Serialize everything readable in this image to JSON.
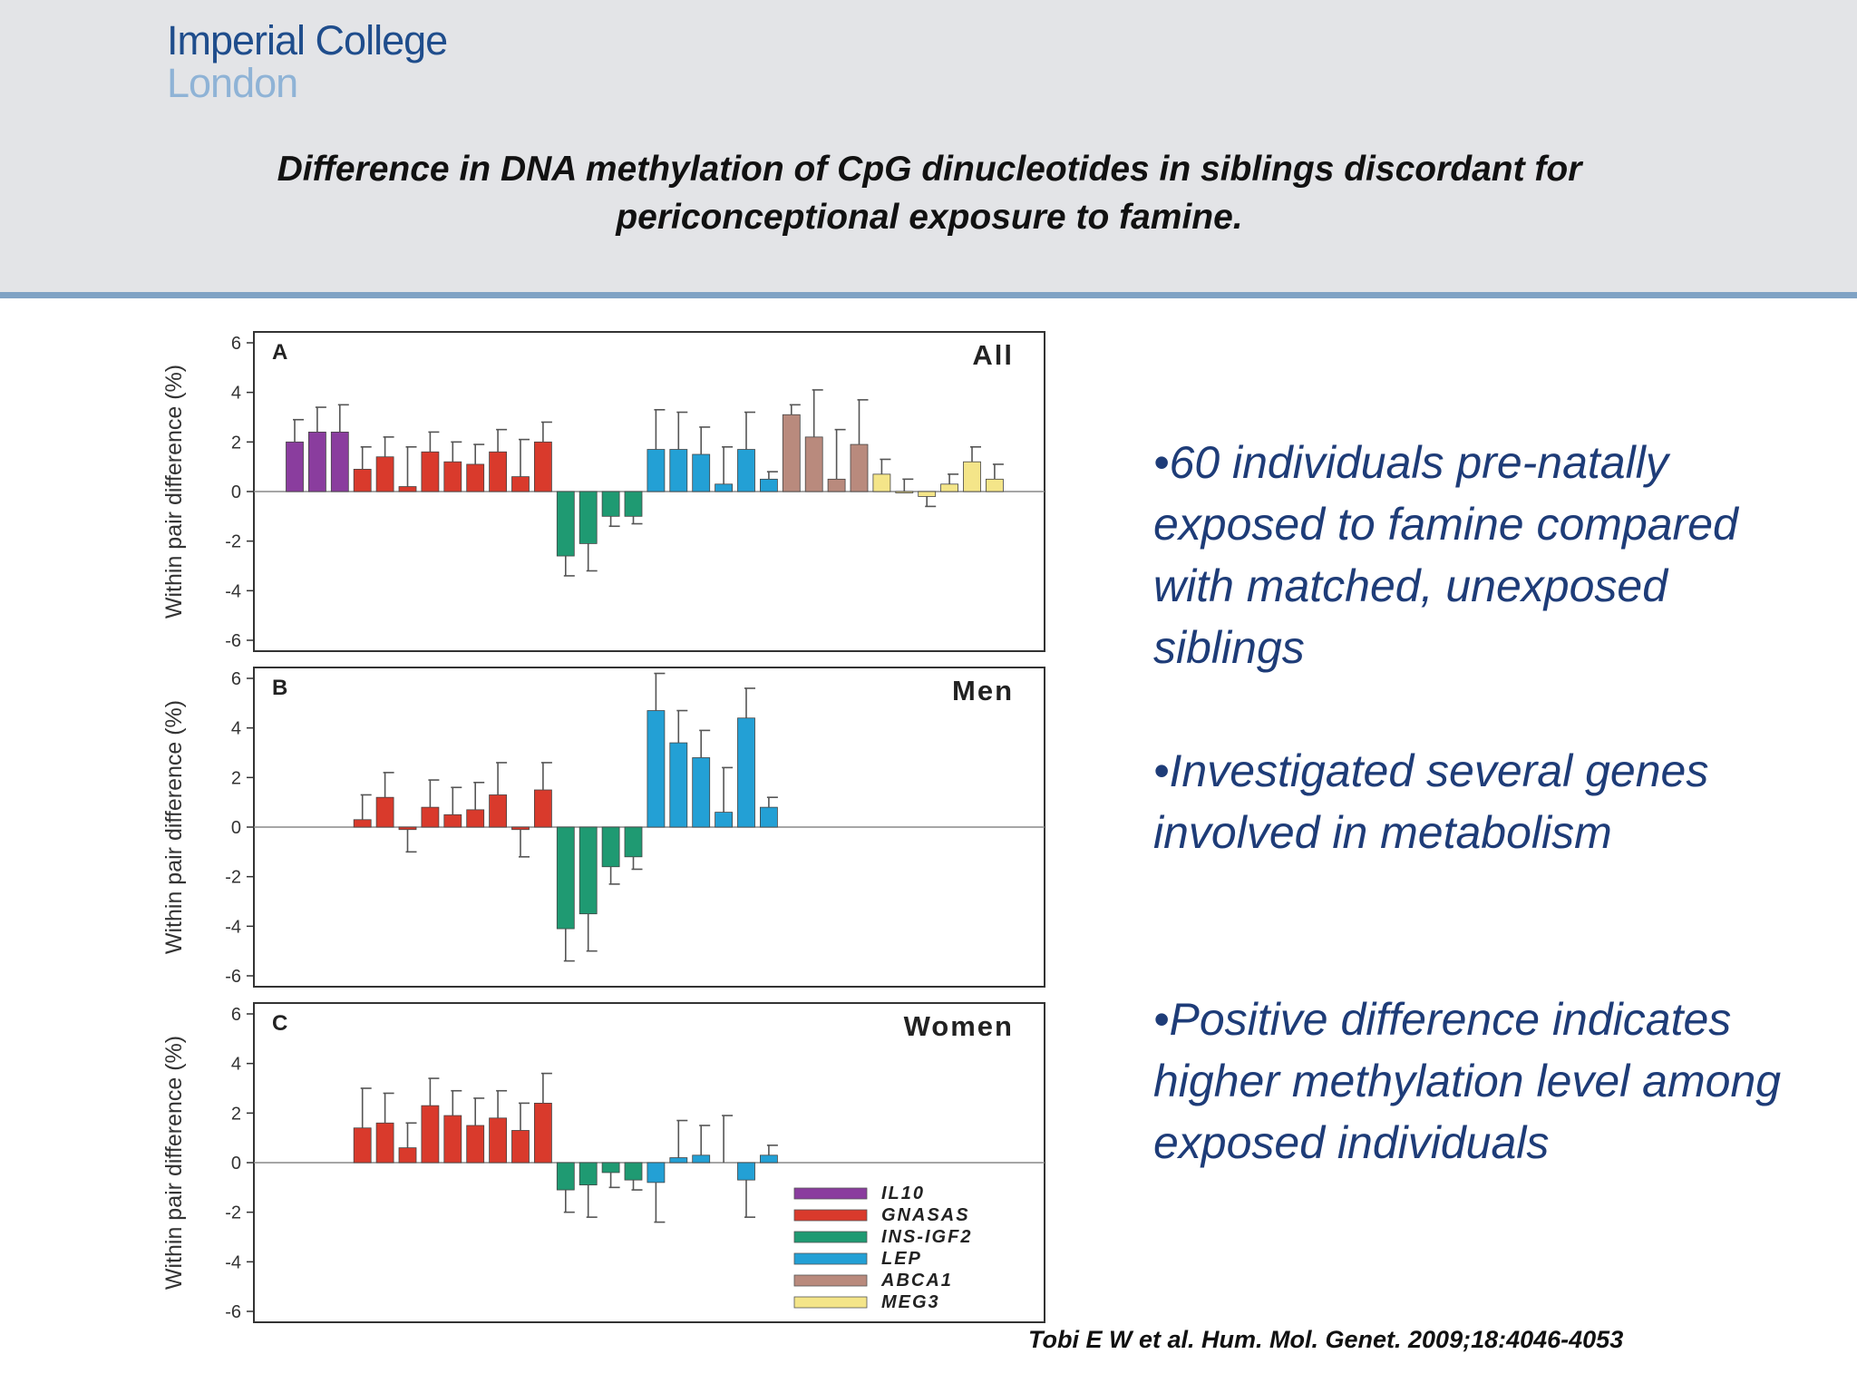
{
  "header": {
    "logo_line1": "Imperial College",
    "logo_line2": "London",
    "title": "Difference in DNA methylation of CpG dinucleotides in siblings discordant for periconceptional exposure to famine."
  },
  "bullets": [
    "•60 individuals pre-natally exposed to famine compared with matched, unexposed siblings",
    "•Investigated several genes involved in metabolism",
    "•Positive difference indicates higher methylation level among exposed individuals"
  ],
  "citation": "Tobi E W et al. Hum. Mol. Genet. 2009;18:4046-4053",
  "chart_data": [
    {
      "type": "bar",
      "panel_letter": "A",
      "title": "All",
      "ylabel": "Within pair difference (%)",
      "ylim": [
        -6,
        6
      ],
      "yticks": [
        "6",
        "4",
        "2",
        "0",
        "-2",
        "-4",
        "-6"
      ],
      "errorbars": "one-sided",
      "genes": [
        "IL10",
        "IL10",
        "IL10",
        "GNASAS",
        "GNASAS",
        "GNASAS",
        "GNASAS",
        "GNASAS",
        "GNASAS",
        "GNASAS",
        "GNASAS",
        "GNASAS",
        "INS-IGF2",
        "INS-IGF2",
        "INS-IGF2",
        "INS-IGF2",
        "LEP",
        "LEP",
        "LEP",
        "LEP",
        "LEP",
        "LEP",
        "ABCA1",
        "ABCA1",
        "ABCA1",
        "ABCA1",
        "MEG3",
        "MEG3",
        "MEG3",
        "MEG3",
        "MEG3",
        "MEG3"
      ],
      "values": [
        2.0,
        2.4,
        2.4,
        0.9,
        1.4,
        0.2,
        1.6,
        1.2,
        1.1,
        1.6,
        0.6,
        2.0,
        -2.6,
        -2.1,
        -1.0,
        -1.0,
        1.7,
        1.7,
        1.5,
        0.3,
        1.7,
        0.5,
        3.1,
        2.2,
        0.5,
        1.9,
        0.7,
        0.0,
        -0.2,
        0.3,
        1.2,
        0.5
      ],
      "errors": [
        0.9,
        1.0,
        1.1,
        0.9,
        0.8,
        1.6,
        0.8,
        0.8,
        0.8,
        0.9,
        1.5,
        0.8,
        0.8,
        1.1,
        0.4,
        0.3,
        1.6,
        1.5,
        1.1,
        1.5,
        1.5,
        0.3,
        0.4,
        1.9,
        2.0,
        1.8,
        0.6,
        0.5,
        0.4,
        0.4,
        0.6,
        0.6
      ]
    },
    {
      "type": "bar",
      "panel_letter": "B",
      "title": "Men",
      "ylabel": "Within pair difference (%)",
      "ylim": [
        -6,
        6
      ],
      "yticks": [
        "6",
        "4",
        "2",
        "0",
        "-2",
        "-4",
        "-6"
      ],
      "errorbars": "one-sided",
      "genes": [
        "IL10",
        "IL10",
        "IL10",
        "GNASAS",
        "GNASAS",
        "GNASAS",
        "GNASAS",
        "GNASAS",
        "GNASAS",
        "GNASAS",
        "GNASAS",
        "GNASAS",
        "INS-IGF2",
        "INS-IGF2",
        "INS-IGF2",
        "INS-IGF2",
        "LEP",
        "LEP",
        "LEP",
        "LEP",
        "LEP",
        "LEP",
        "ABCA1",
        "ABCA1",
        "ABCA1",
        "ABCA1",
        "MEG3",
        "MEG3",
        "MEG3",
        "MEG3",
        "MEG3",
        "MEG3"
      ],
      "values": [
        null,
        null,
        null,
        0.3,
        1.2,
        -0.1,
        0.8,
        0.5,
        0.7,
        1.3,
        -0.1,
        1.5,
        -4.1,
        -3.5,
        -1.6,
        -1.2,
        4.7,
        3.4,
        2.8,
        0.6,
        4.4,
        0.8,
        null,
        null,
        null,
        null,
        null,
        null,
        null,
        null,
        null,
        null
      ],
      "errors": [
        null,
        null,
        null,
        1.0,
        1.0,
        0.9,
        1.1,
        1.1,
        1.1,
        1.3,
        1.1,
        1.1,
        1.3,
        1.5,
        0.7,
        0.5,
        1.5,
        1.3,
        1.1,
        1.8,
        1.2,
        0.4,
        null,
        null,
        null,
        null,
        null,
        null,
        null,
        null,
        null,
        null
      ]
    },
    {
      "type": "bar",
      "panel_letter": "C",
      "title": "Women",
      "ylabel": "Within pair difference (%)",
      "ylim": [
        -6,
        6
      ],
      "yticks": [
        "6",
        "4",
        "2",
        "0",
        "-2",
        "-4",
        "-6"
      ],
      "errorbars": "one-sided",
      "genes": [
        "IL10",
        "IL10",
        "IL10",
        "GNASAS",
        "GNASAS",
        "GNASAS",
        "GNASAS",
        "GNASAS",
        "GNASAS",
        "GNASAS",
        "GNASAS",
        "GNASAS",
        "INS-IGF2",
        "INS-IGF2",
        "INS-IGF2",
        "INS-IGF2",
        "LEP",
        "LEP",
        "LEP",
        "LEP",
        "LEP",
        "LEP",
        "ABCA1",
        "ABCA1",
        "ABCA1",
        "ABCA1",
        "MEG3",
        "MEG3",
        "MEG3",
        "MEG3",
        "MEG3",
        "MEG3"
      ],
      "values": [
        null,
        null,
        null,
        1.4,
        1.6,
        0.6,
        2.3,
        1.9,
        1.5,
        1.8,
        1.3,
        2.4,
        -1.1,
        -0.9,
        -0.4,
        -0.7,
        -0.8,
        0.2,
        0.3,
        null,
        -0.7,
        0.3,
        null,
        null,
        null,
        null,
        null,
        null,
        null,
        null,
        null,
        null
      ],
      "errors": [
        null,
        null,
        null,
        1.6,
        1.2,
        1.0,
        1.1,
        1.0,
        1.1,
        1.1,
        1.1,
        1.2,
        0.9,
        1.3,
        0.6,
        0.4,
        1.6,
        1.5,
        1.2,
        null,
        1.5,
        0.4,
        null,
        null,
        null,
        null,
        null,
        null,
        null,
        null,
        null,
        null
      ],
      "extra_errorbars": [
        {
          "index": 19,
          "value": 0,
          "error": 1.9
        }
      ],
      "legend": {
        "placement": "bottom-right",
        "items": [
          {
            "name": "IL10",
            "color": "#8a3d9e"
          },
          {
            "name": "GNASAS",
            "color": "#d93a2c"
          },
          {
            "name": "INS-IGF2",
            "color": "#1f9a72"
          },
          {
            "name": "LEP",
            "color": "#23a0d5"
          },
          {
            "name": "ABCA1",
            "color": "#b98a7d"
          },
          {
            "name": "MEG3",
            "color": "#f4e589"
          }
        ]
      }
    }
  ],
  "colors": {
    "IL10": "#8a3d9e",
    "GNASAS": "#d93a2c",
    "INS-IGF2": "#1f9a72",
    "LEP": "#23a0d5",
    "ABCA1": "#b98a7d",
    "MEG3": "#f4e589",
    "header_bg": "#e3e4e7",
    "header_rule": "#7fa2c4",
    "text_blue": "#1e3c78"
  }
}
